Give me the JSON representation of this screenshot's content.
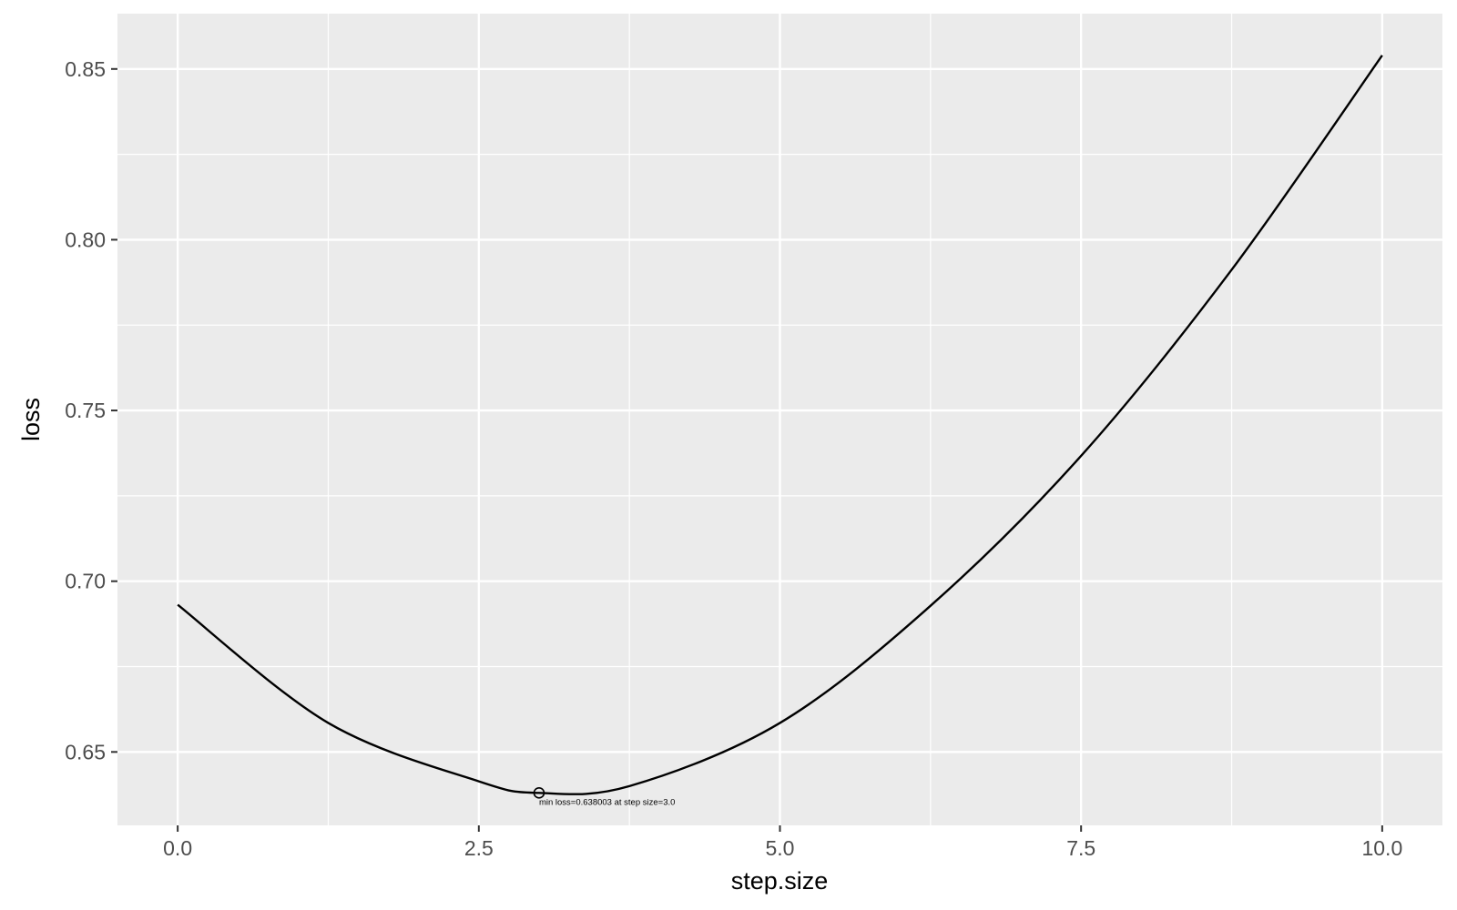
{
  "chart_data": {
    "type": "line",
    "title": "",
    "xlabel": "step.size",
    "ylabel": "loss",
    "xlim": [
      -0.5,
      10.5
    ],
    "ylim": [
      0.6285,
      0.8662
    ],
    "xticks": [
      "0.0",
      "2.5",
      "5.0",
      "7.5",
      "10.0"
    ],
    "xtick_values": [
      0,
      2.5,
      5,
      7.5,
      10
    ],
    "yticks": [
      "0.65",
      "0.70",
      "0.75",
      "0.80",
      "0.85"
    ],
    "ytick_values": [
      0.65,
      0.7,
      0.75,
      0.8,
      0.85
    ],
    "grid": true,
    "background": "#ebebeb",
    "line_color": "#000000",
    "series": [
      {
        "x": [
          0,
          1.25,
          2.5,
          3.0,
          3.75,
          5.0,
          6.25,
          7.5,
          8.75,
          10.0
        ],
        "y": [
          0.6931,
          0.6585,
          0.6414,
          0.638003,
          0.64,
          0.6585,
          0.6928,
          0.7367,
          0.7912,
          0.854
        ]
      }
    ],
    "min_point": {
      "x": 3.0,
      "y": 0.638003
    },
    "annotation": "min loss=0.638003 at step size=3.0"
  }
}
